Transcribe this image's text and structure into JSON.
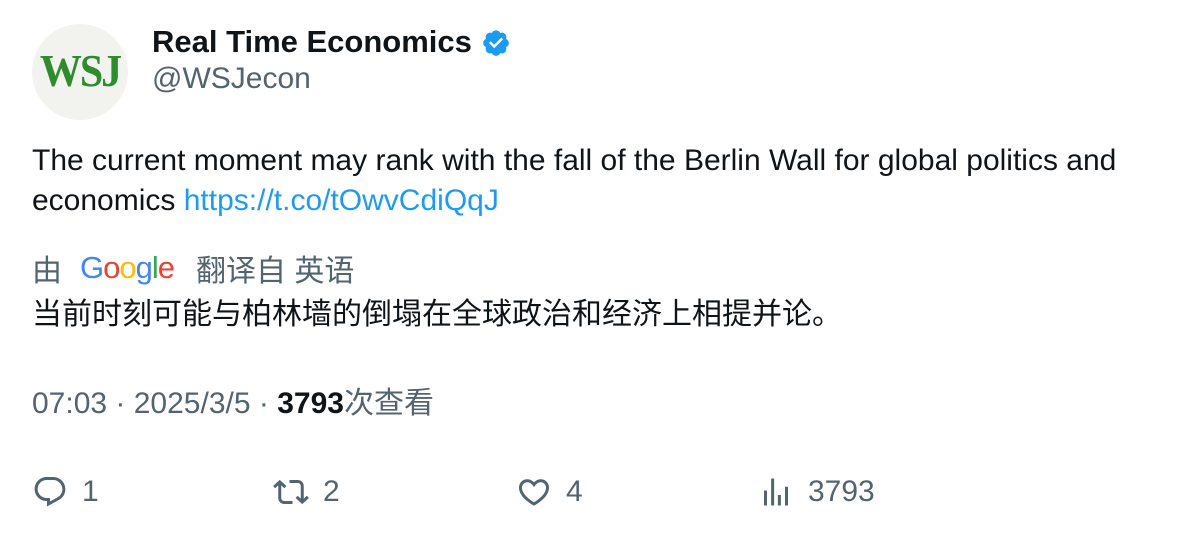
{
  "author": {
    "avatar_text": "WSJ",
    "display_name": "Real Time Economics",
    "handle": "@WSJecon",
    "verified_icon": "verified-badge-icon"
  },
  "tweet": {
    "text": "The current moment may rank with the fall of the Berlin Wall for global politics and economics ",
    "link": "https://t.co/tOwvCdiQqJ"
  },
  "translation": {
    "prefix": "由",
    "provider": "Google",
    "suffix": "翻译自 英语",
    "text": "当前时刻可能与柏林墙的倒塌在全球政治和经济上相提并论。"
  },
  "meta": {
    "time": "07:03",
    "separator": " · ",
    "date": "2025/3/5",
    "views_count": "3793",
    "views_label": "次查看"
  },
  "actions": {
    "reply_count": "1",
    "retweet_count": "2",
    "like_count": "4",
    "views_count": "3793"
  },
  "colors": {
    "link": "#1d9bf0",
    "secondary_text": "#536471",
    "primary_text": "#0f1419",
    "avatar_bg": "#f2f2ef",
    "wsj_green": "#2e8b2e"
  }
}
